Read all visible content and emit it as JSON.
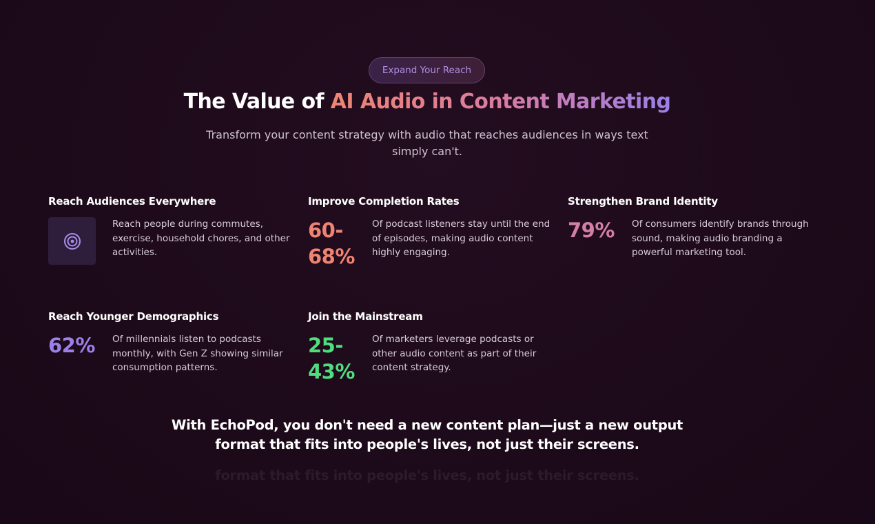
{
  "badge": {
    "label": "Expand Your Reach"
  },
  "hero": {
    "title_plain": "The Value of ",
    "title_highlight": "AI Audio in Content Marketing",
    "subtitle": "Transform your content strategy with audio that reaches audiences in ways text simply can't."
  },
  "cards": [
    {
      "title": "Reach Audiences Everywhere",
      "icon": "target-icon",
      "description": "Reach people during commutes, exercise, household chores, and other activities."
    },
    {
      "title": "Improve Completion Rates",
      "stat": "60-68%",
      "description": "Of podcast listeners stay until the end of episodes, making audio content highly engaging."
    },
    {
      "title": "Strengthen Brand Identity",
      "stat": "79%",
      "description": "Of consumers identify brands through sound, making audio branding a powerful marketing tool."
    },
    {
      "title": "Reach Younger Demographics",
      "stat": "62%",
      "description": "Of millennials listen to podcasts monthly, with Gen Z showing similar consumption patterns."
    },
    {
      "title": "Join the Mainstream",
      "stat": "25-43%",
      "description": "Of marketers leverage podcasts or other audio content as part of their content strategy."
    }
  ],
  "colors": {
    "stat_orange": "#ef8472",
    "stat_pink": "#d27fa3",
    "stat_purple": "#9b80e8",
    "stat_green": "#4ede7e",
    "icon_accent": "#a98ee8"
  },
  "closing": {
    "text": "With EchoPod, you don't need a new content plan—just a new output format that fits into people's lives, not just their screens.",
    "ghost_text": "format that fits into people's lives, not just their screens."
  }
}
